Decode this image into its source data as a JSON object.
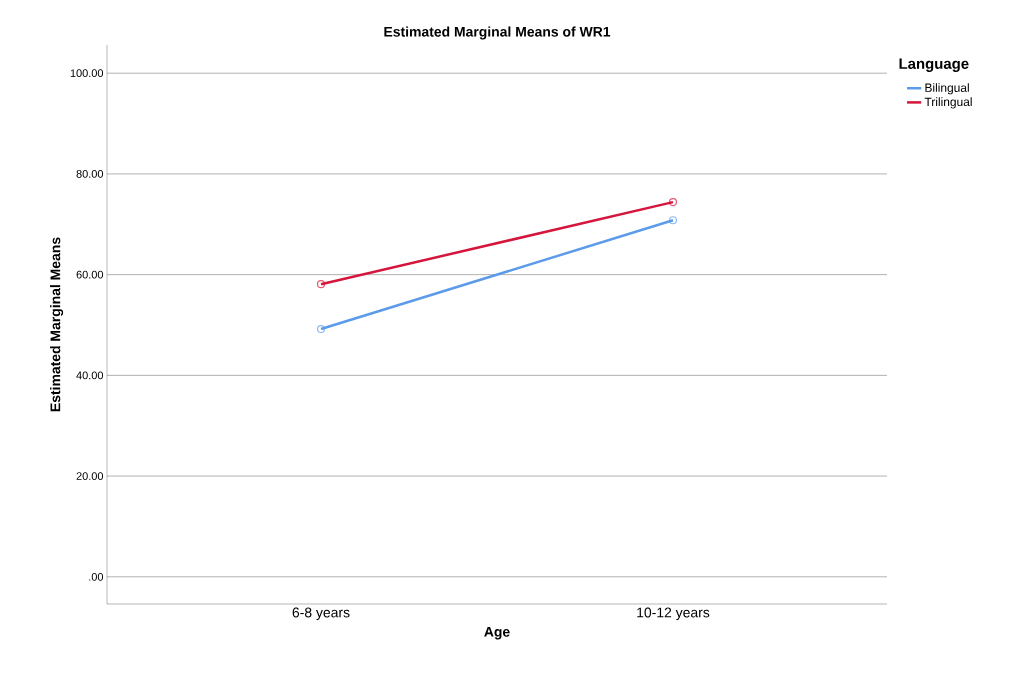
{
  "chart_data": {
    "type": "line",
    "title": "Estimated Marginal Means of WR1",
    "xlabel": "Age",
    "ylabel": "Estimated Marginal Means",
    "legend_title": "Language",
    "categories": [
      "6-8 years",
      "10-12 years"
    ],
    "series": [
      {
        "name": "Bilingual",
        "color": "#5b9bea",
        "values": [
          49.2,
          70.8
        ]
      },
      {
        "name": "Trilingual",
        "color": "#d4163c",
        "values": [
          58.1,
          74.4
        ]
      }
    ],
    "ylim": [
      -5.4,
      105.6
    ],
    "yticks": [
      {
        "value": 0,
        "label": ".00"
      },
      {
        "value": 20,
        "label": "20.00"
      },
      {
        "value": 40,
        "label": "40.00"
      },
      {
        "value": 60,
        "label": "60.00"
      },
      {
        "value": 80,
        "label": "80.00"
      },
      {
        "value": 100,
        "label": "100.00"
      }
    ],
    "grid": "y",
    "legend": "top right",
    "marker": "circle",
    "line_style": "solid"
  }
}
